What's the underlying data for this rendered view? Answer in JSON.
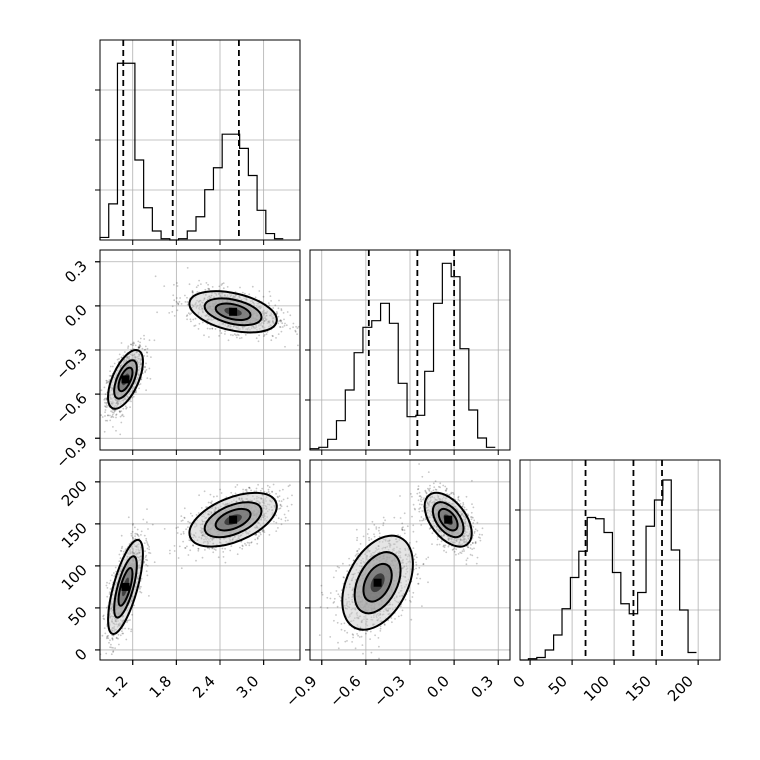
{
  "chart_data": {
    "type": "corner",
    "title": "",
    "parameters": [
      {
        "name": "",
        "range": [
          0.75,
          3.5
        ],
        "ticks": [
          1.2,
          1.8,
          2.4,
          3.0
        ],
        "tick_labels": [
          "1.2",
          "1.8",
          "2.4",
          "3.0"
        ]
      },
      {
        "name": "",
        "range": [
          -0.98,
          0.38
        ],
        "ticks": [
          -0.9,
          -0.6,
          -0.3,
          0.0,
          0.3
        ],
        "tick_labels": [
          "−0.9",
          "−0.6",
          "−0.3",
          "0.0",
          "0.3"
        ]
      },
      {
        "name": "",
        "range": [
          -12,
          226
        ],
        "ticks": [
          0,
          50,
          100,
          150,
          200
        ],
        "tick_labels": [
          "0",
          "50",
          "100",
          "150",
          "200"
        ]
      }
    ],
    "histograms": [
      {
        "parameter_index": 0,
        "bin_edges": [
          0.75,
          0.87,
          0.99,
          1.11,
          1.23,
          1.35,
          1.47,
          1.59,
          1.71,
          1.83,
          1.95,
          2.07,
          2.19,
          2.31,
          2.43,
          2.55,
          2.67,
          2.79,
          2.91,
          3.03,
          3.15,
          3.27
        ],
        "counts": [
          2,
          28,
          137,
          137,
          62,
          25,
          7,
          1,
          0,
          1,
          7,
          18,
          39,
          56,
          82,
          82,
          71,
          50,
          23,
          5,
          1
        ],
        "ymax": 155,
        "quantiles": [
          1.07,
          1.75,
          2.66
        ]
      },
      {
        "parameter_index": 1,
        "bin_edges": [
          -0.98,
          -0.92,
          -0.86,
          -0.8,
          -0.74,
          -0.68,
          -0.62,
          -0.56,
          -0.5,
          -0.44,
          -0.38,
          -0.32,
          -0.26,
          -0.2,
          -0.14,
          -0.08,
          -0.02,
          0.04,
          0.1,
          0.16,
          0.22,
          0.28
        ],
        "counts": [
          1,
          2,
          8,
          22,
          45,
          73,
          92,
          97,
          110,
          95,
          50,
          25,
          26,
          59,
          110,
          140,
          130,
          76,
          30,
          9,
          2
        ],
        "ymax": 150,
        "quantiles": [
          -0.58,
          -0.25,
          0.0
        ]
      },
      {
        "parameter_index": 2,
        "bin_edges": [
          -12,
          -2,
          8,
          18,
          28,
          38,
          48,
          58,
          68,
          78,
          88,
          98,
          108,
          118,
          128,
          138,
          148,
          158,
          168,
          178,
          188,
          198
        ],
        "counts": [
          0,
          1,
          2,
          8,
          20,
          41,
          66,
          87,
          114,
          113,
          102,
          70,
          45,
          37,
          54,
          107,
          128,
          144,
          88,
          40,
          6
        ],
        "ymax": 160,
        "quantiles": [
          66,
          123,
          157
        ]
      }
    ],
    "scatter_panels": [
      {
        "x_parameter": 0,
        "y_parameter": 1,
        "modes": [
          {
            "center": [
              1.1,
              -0.5
            ],
            "sx": 0.12,
            "sy": 0.1,
            "rho": 0.6
          },
          {
            "center": [
              2.58,
              -0.04
            ],
            "sx": 0.3,
            "sy": 0.07,
            "rho": -0.4
          }
        ]
      },
      {
        "x_parameter": 0,
        "y_parameter": 2,
        "modes": [
          {
            "center": [
              1.1,
              75
            ],
            "sx": 0.12,
            "sy": 28,
            "rho": 0.7
          },
          {
            "center": [
              2.58,
              155
            ],
            "sx": 0.3,
            "sy": 16,
            "rho": 0.5
          }
        ]
      },
      {
        "x_parameter": 1,
        "y_parameter": 2,
        "modes": [
          {
            "center": [
              -0.52,
              80
            ],
            "sx": 0.12,
            "sy": 28,
            "rho": 0.4
          },
          {
            "center": [
              -0.04,
              155
            ],
            "sx": 0.08,
            "sy": 16,
            "rho": -0.5
          }
        ]
      }
    ],
    "grid": true,
    "legend": "none"
  }
}
